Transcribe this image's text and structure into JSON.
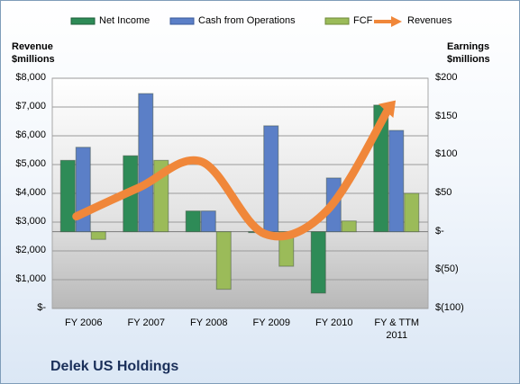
{
  "chart_data": {
    "type": "bar",
    "categories": [
      "FY 2006",
      "FY 2007",
      "FY 2008",
      "FY 2009",
      "FY 2010",
      "FY & TTM\n2011"
    ],
    "series": [
      {
        "name": "Net Income",
        "axis": "right",
        "values": [
          93,
          99,
          27,
          -1,
          -80,
          165
        ],
        "color": "#2e8b57"
      },
      {
        "name": "Cash from Operations",
        "axis": "right",
        "values": [
          110,
          180,
          27,
          138,
          70,
          132
        ],
        "color": "#5b7fc7"
      },
      {
        "name": "FCF",
        "axis": "right",
        "values": [
          -10,
          93,
          -75,
          -45,
          14,
          50
        ],
        "color": "#9bbb59"
      },
      {
        "name": "Revenues",
        "axis": "left",
        "type": "line",
        "values": [
          3200,
          4200,
          5100,
          2600,
          3400,
          7000
        ],
        "color": "#f0873a"
      }
    ],
    "left_axis": {
      "title": "Revenue $millions",
      "ylim": [
        0,
        8000
      ],
      "ticks": [
        "$-",
        "$1,000",
        "$2,000",
        "$3,000",
        "$4,000",
        "$5,000",
        "$6,000",
        "$7,000",
        "$8,000"
      ]
    },
    "right_axis": {
      "title": "Earnings $millions",
      "ylim": [
        -100,
        200
      ],
      "ticks": [
        "$(100)",
        "$(50)",
        "$-",
        "$50",
        "$100",
        "$150",
        "$200"
      ]
    },
    "legend": {
      "placement": "top",
      "entries": [
        "Net Income",
        "Cash from Operations",
        "FCF",
        "Revenues"
      ]
    },
    "grid": true
  },
  "labels": {
    "left_title_1": "Revenue",
    "left_title_2": "$millions",
    "right_title_1": "Earnings",
    "right_title_2": "$millions",
    "company": "Delek US Holdings"
  }
}
